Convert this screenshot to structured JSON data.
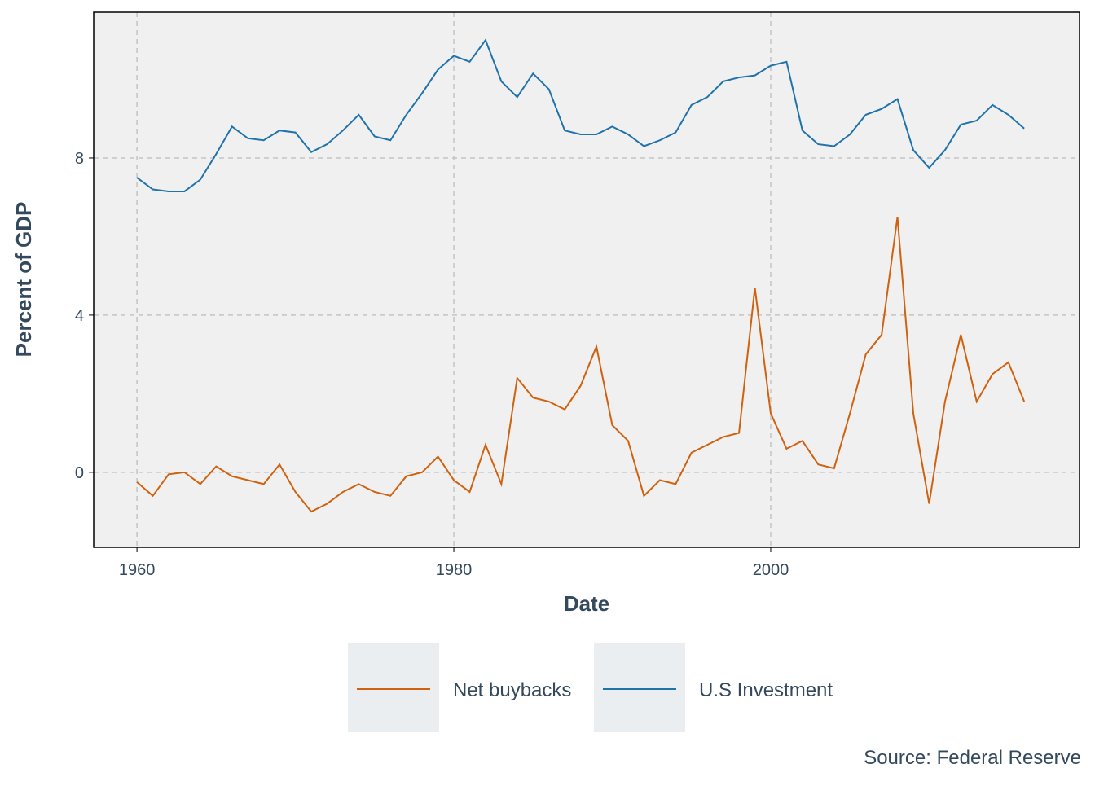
{
  "chart_data": {
    "type": "line",
    "xlabel": "Date",
    "ylabel": "Percent of GDP",
    "caption": "Source: Federal Reserve",
    "x": [
      1960,
      1961,
      1962,
      1963,
      1964,
      1965,
      1966,
      1967,
      1968,
      1969,
      1970,
      1971,
      1972,
      1973,
      1974,
      1975,
      1976,
      1977,
      1978,
      1979,
      1980,
      1981,
      1982,
      1983,
      1984,
      1985,
      1986,
      1987,
      1988,
      1989,
      1990,
      1991,
      1992,
      1993,
      1994,
      1995,
      1996,
      1997,
      1998,
      1999,
      2000,
      2001,
      2002,
      2003,
      2004,
      2005,
      2006,
      2007,
      2008,
      2009,
      2010,
      2011,
      2012,
      2013,
      2014,
      2015,
      2016
    ],
    "series": [
      {
        "name": "Net buybacks",
        "color": "#d0620f",
        "values": [
          -0.25,
          -0.6,
          -0.05,
          0.0,
          -0.3,
          0.15,
          -0.1,
          -0.2,
          -0.3,
          0.2,
          -0.5,
          -1.0,
          -0.8,
          -0.5,
          -0.3,
          -0.5,
          -0.6,
          -0.1,
          0.0,
          0.4,
          -0.2,
          -0.5,
          0.7,
          -0.3,
          2.4,
          1.9,
          1.8,
          1.6,
          2.2,
          3.2,
          1.2,
          0.8,
          -0.6,
          -0.2,
          -0.3,
          0.5,
          0.7,
          0.9,
          1.0,
          4.7,
          1.5,
          0.6,
          0.8,
          0.2,
          0.1,
          1.5,
          3.0,
          3.5,
          6.5,
          1.5,
          -0.8,
          1.8,
          3.5,
          1.8,
          2.5,
          2.8,
          1.8
        ]
      },
      {
        "name": "U.S Investment",
        "color": "#1f72aa",
        "values": [
          7.5,
          7.2,
          7.15,
          7.15,
          7.45,
          8.1,
          8.8,
          8.5,
          8.45,
          8.7,
          8.65,
          8.15,
          8.35,
          8.7,
          9.1,
          8.55,
          8.45,
          9.1,
          9.65,
          10.25,
          10.6,
          10.45,
          11.0,
          9.95,
          9.55,
          10.15,
          9.75,
          8.7,
          8.6,
          8.6,
          8.8,
          8.6,
          8.3,
          8.45,
          8.65,
          9.35,
          9.55,
          9.95,
          10.05,
          10.1,
          10.35,
          10.45,
          8.7,
          8.35,
          8.3,
          8.6,
          9.1,
          9.25,
          9.5,
          8.2,
          7.75,
          8.2,
          8.85,
          8.95,
          9.35,
          9.1,
          8.75
        ]
      }
    ],
    "xlim": [
      1957.27,
      2019.49
    ],
    "ylim": [
      -1.91,
      11.71
    ],
    "xticks": [
      1960,
      1980,
      2000
    ],
    "yticks": [
      0,
      4,
      8
    ],
    "grid": true,
    "legend_position": "bottom"
  }
}
